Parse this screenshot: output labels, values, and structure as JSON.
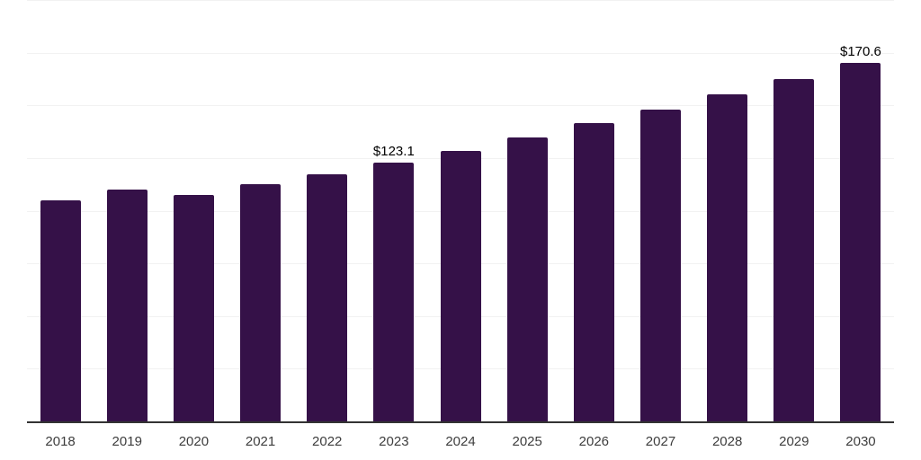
{
  "chart_data": {
    "type": "bar",
    "title": "",
    "xlabel": "",
    "ylabel": "",
    "categories": [
      "2018",
      "2019",
      "2020",
      "2021",
      "2022",
      "2023",
      "2024",
      "2025",
      "2026",
      "2027",
      "2028",
      "2029",
      "2030"
    ],
    "values": [
      105.5,
      110.6,
      107.9,
      113.2,
      117.9,
      123.1,
      128.9,
      135.3,
      141.8,
      148.4,
      155.5,
      162.7,
      170.6
    ],
    "value_labels": [
      "",
      "",
      "",
      "",
      "",
      "$123.1",
      "",
      "",
      "",
      "",
      "",
      "",
      "$170.6"
    ],
    "ylim": [
      0,
      200
    ],
    "grid_step": 25,
    "grid": true,
    "legend": false,
    "colors": {
      "bar": "#351148",
      "grid": "#f2f2f2",
      "axis": "#333333",
      "tick_label": "#3d3d3d",
      "value_label": "#000000",
      "background": "#ffffff"
    }
  }
}
